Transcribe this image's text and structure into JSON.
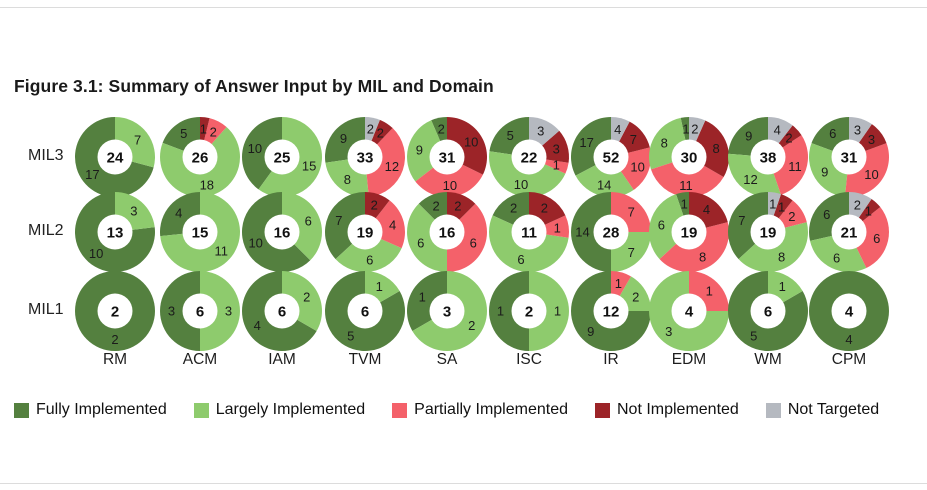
{
  "title": "Figure 3.1: Summary of Answer Input by MIL and Domain",
  "chart_data": {
    "type": "pie",
    "subtype": "donut-grid",
    "title": "Figure 3.1: Summary of Answer Input by MIL and Domain",
    "rows": [
      "MIL3",
      "MIL2",
      "MIL1"
    ],
    "columns": [
      "RM",
      "ACM",
      "IAM",
      "TVM",
      "SA",
      "ISC",
      "IR",
      "EDM",
      "WM",
      "CPM"
    ],
    "legend_position": "bottom",
    "totals_in_center": true,
    "segment_order": "counterclockwise-from-top",
    "categories": [
      {
        "name": "Fully Implemented",
        "color": "#54803f"
      },
      {
        "name": "Largely Implemented",
        "color": "#8ecb6d"
      },
      {
        "name": "Partially Implemented",
        "color": "#f4616a"
      },
      {
        "name": "Not Implemented",
        "color": "#9c2428"
      },
      {
        "name": "Not Targeted",
        "color": "#b5b9c0"
      }
    ],
    "data": [
      {
        "mil": "MIL3",
        "donuts": [
          {
            "domain": "RM",
            "total": 24,
            "segments": [
              17,
              7,
              0,
              0,
              0
            ]
          },
          {
            "domain": "ACM",
            "total": 26,
            "segments": [
              5,
              18,
              2,
              1,
              0
            ]
          },
          {
            "domain": "IAM",
            "total": 25,
            "segments": [
              10,
              15,
              0,
              0,
              0
            ]
          },
          {
            "domain": "TVM",
            "total": 33,
            "segments": [
              9,
              8,
              12,
              2,
              2
            ]
          },
          {
            "domain": "SA",
            "total": 31,
            "segments": [
              2,
              9,
              10,
              10,
              0
            ]
          },
          {
            "domain": "ISC",
            "total": 22,
            "segments": [
              5,
              10,
              1,
              3,
              3
            ]
          },
          {
            "domain": "IR",
            "total": 52,
            "segments": [
              17,
              14,
              10,
              7,
              4
            ]
          },
          {
            "domain": "EDM",
            "total": 30,
            "segments": [
              1,
              8,
              11,
              8,
              2
            ]
          },
          {
            "domain": "WM",
            "total": 38,
            "segments": [
              9,
              12,
              11,
              2,
              4
            ]
          },
          {
            "domain": "CPM",
            "total": 31,
            "segments": [
              6,
              9,
              10,
              3,
              3
            ]
          }
        ]
      },
      {
        "mil": "MIL2",
        "donuts": [
          {
            "domain": "RM",
            "total": 13,
            "segments": [
              10,
              3,
              0,
              0,
              0
            ]
          },
          {
            "domain": "ACM",
            "total": 15,
            "segments": [
              4,
              11,
              0,
              0,
              0
            ]
          },
          {
            "domain": "IAM",
            "total": 16,
            "segments": [
              10,
              6,
              0,
              0,
              0
            ]
          },
          {
            "domain": "TVM",
            "total": 19,
            "segments": [
              7,
              6,
              4,
              2,
              0
            ]
          },
          {
            "domain": "SA",
            "total": 16,
            "segments": [
              2,
              6,
              6,
              2,
              0
            ]
          },
          {
            "domain": "ISC",
            "total": 11,
            "segments": [
              2,
              6,
              1,
              2,
              0
            ]
          },
          {
            "domain": "IR",
            "total": 28,
            "segments": [
              14,
              7,
              7,
              0,
              0
            ]
          },
          {
            "domain": "EDM",
            "total": 19,
            "segments": [
              1,
              6,
              8,
              4,
              0
            ]
          },
          {
            "domain": "WM",
            "total": 19,
            "segments": [
              7,
              8,
              2,
              1,
              1
            ]
          },
          {
            "domain": "CPM",
            "total": 21,
            "segments": [
              6,
              6,
              6,
              1,
              2
            ]
          }
        ]
      },
      {
        "mil": "MIL1",
        "donuts": [
          {
            "domain": "RM",
            "total": 2,
            "segments": [
              2,
              0,
              0,
              0,
              0
            ]
          },
          {
            "domain": "ACM",
            "total": 6,
            "segments": [
              3,
              3,
              0,
              0,
              0
            ]
          },
          {
            "domain": "IAM",
            "total": 6,
            "segments": [
              4,
              2,
              0,
              0,
              0
            ]
          },
          {
            "domain": "TVM",
            "total": 6,
            "segments": [
              5,
              1,
              0,
              0,
              0
            ]
          },
          {
            "domain": "SA",
            "total": 3,
            "segments": [
              1,
              2,
              0,
              0,
              0
            ]
          },
          {
            "domain": "ISC",
            "total": 2,
            "segments": [
              1,
              1,
              0,
              0,
              0
            ]
          },
          {
            "domain": "IR",
            "total": 12,
            "segments": [
              9,
              2,
              1,
              0,
              0
            ]
          },
          {
            "domain": "EDM",
            "total": 4,
            "segments": [
              0,
              3,
              1,
              0,
              0
            ]
          },
          {
            "domain": "WM",
            "total": 6,
            "segments": [
              5,
              1,
              0,
              0,
              0
            ]
          },
          {
            "domain": "CPM",
            "total": 4,
            "segments": [
              4,
              0,
              0,
              0,
              0
            ]
          }
        ]
      }
    ]
  }
}
